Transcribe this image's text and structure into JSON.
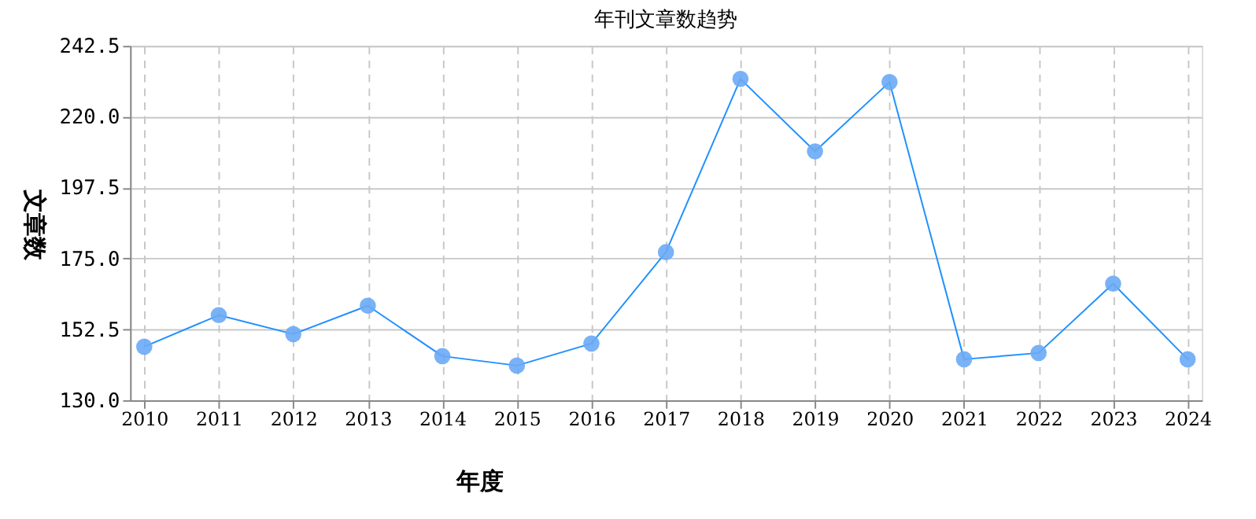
{
  "chart_data": {
    "type": "line",
    "title": "年刊文章数趋势",
    "xlabel": "年度",
    "ylabel": "文章数",
    "categories": [
      "2010",
      "2011",
      "2012",
      "2013",
      "2014",
      "2015",
      "2016",
      "2017",
      "2018",
      "2019",
      "2020",
      "2021",
      "2022",
      "2023",
      "2024"
    ],
    "series": [
      {
        "color": "#1e90ff",
        "values": [
          147,
          157,
          151,
          160,
          144,
          141,
          148,
          177,
          232,
          209,
          231,
          143,
          145,
          167,
          143
        ]
      }
    ],
    "ylim": [
      130,
      242.5
    ],
    "yticks": [
      {
        "value": 130,
        "label": "130.0"
      },
      {
        "value": 152.5,
        "label": "152.5"
      },
      {
        "value": 175,
        "label": "175.0"
      },
      {
        "value": 197.5,
        "label": "197.5"
      },
      {
        "value": 220,
        "label": "220.0"
      },
      {
        "value": 242.5,
        "label": "242.5"
      }
    ],
    "grid": true,
    "marker": "circle",
    "line_style": "solid"
  }
}
